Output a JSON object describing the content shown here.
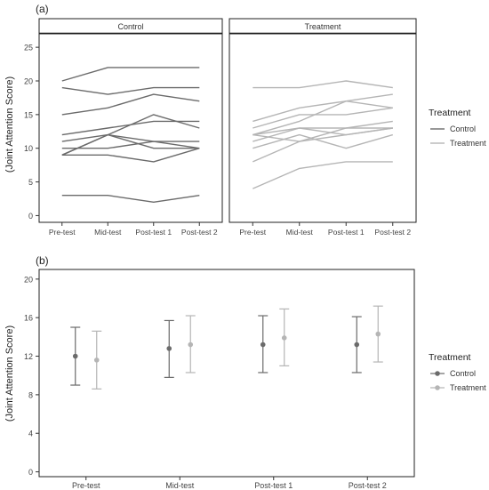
{
  "panels": {
    "a": {
      "tag": "(a)"
    },
    "b": {
      "tag": "(b)"
    }
  },
  "colors": {
    "control": "#6b6b6b",
    "treatment": "#b5b5b5",
    "strip_fill": "#ffffff",
    "axis_text": "#444444"
  },
  "chart_data": [
    {
      "type": "line",
      "panel": "(a)",
      "title": "",
      "xlabel": "",
      "ylabel": "(Joint Attention Score)",
      "ylim": [
        -1,
        27
      ],
      "yticks": [
        0,
        5,
        10,
        15,
        20,
        25
      ],
      "categories": [
        "Pre-test",
        "Mid-test",
        "Post-test 1",
        "Post-test 2"
      ],
      "grid": false,
      "legend": {
        "title": "Treatment",
        "entries": [
          "Control",
          "Treatment"
        ],
        "placement": "right"
      },
      "facets": [
        {
          "label": "Control",
          "group": "Control",
          "series": [
            {
              "values": [
                20,
                22,
                22,
                22
              ]
            },
            {
              "values": [
                19,
                18,
                19,
                19
              ]
            },
            {
              "values": [
                15,
                16,
                18,
                17
              ]
            },
            {
              "values": [
                12,
                13,
                14,
                14
              ]
            },
            {
              "values": [
                11,
                12,
                11,
                11
              ]
            },
            {
              "values": [
                10,
                10,
                11,
                10
              ]
            },
            {
              "values": [
                9,
                12,
                15,
                13
              ]
            },
            {
              "values": [
                9,
                9,
                8,
                10
              ]
            },
            {
              "values": [
                9,
                12,
                10,
                10
              ]
            },
            {
              "values": [
                3,
                3,
                2,
                3
              ]
            }
          ]
        },
        {
          "label": "Treatment",
          "group": "Treatment",
          "series": [
            {
              "values": [
                19,
                19,
                20,
                19
              ]
            },
            {
              "values": [
                14,
                16,
                17,
                16
              ]
            },
            {
              "values": [
                13,
                15,
                15,
                16
              ]
            },
            {
              "values": [
                12,
                14,
                17,
                18
              ]
            },
            {
              "values": [
                12,
                13,
                12,
                13
              ]
            },
            {
              "values": [
                12,
                11,
                13,
                14
              ]
            },
            {
              "values": [
                11,
                13,
                13,
                13
              ]
            },
            {
              "values": [
                10,
                12,
                10,
                12
              ]
            },
            {
              "values": [
                8,
                11,
                12,
                13
              ]
            },
            {
              "values": [
                4,
                7,
                8,
                8
              ]
            }
          ]
        }
      ]
    },
    {
      "type": "errorbar",
      "panel": "(b)",
      "title": "",
      "xlabel": "",
      "ylabel": "(Joint Attention Score)",
      "ylim": [
        -0.5,
        21
      ],
      "yticks": [
        0,
        4,
        8,
        12,
        16,
        20
      ],
      "categories": [
        "Pre-test",
        "Mid-test",
        "Post-test 1",
        "Post-test 2"
      ],
      "grid": false,
      "legend": {
        "title": "Treatment",
        "entries": [
          "Control",
          "Treatment"
        ],
        "placement": "right"
      },
      "series": [
        {
          "name": "Control",
          "means": [
            12.0,
            12.8,
            13.2,
            13.2
          ],
          "lower": [
            9.0,
            9.8,
            10.3,
            10.3
          ],
          "upper": [
            15.0,
            15.7,
            16.2,
            16.1
          ]
        },
        {
          "name": "Treatment",
          "means": [
            11.6,
            13.2,
            13.9,
            14.3
          ],
          "lower": [
            8.6,
            10.3,
            11.0,
            11.4
          ],
          "upper": [
            14.6,
            16.2,
            16.9,
            17.2
          ]
        }
      ]
    }
  ]
}
